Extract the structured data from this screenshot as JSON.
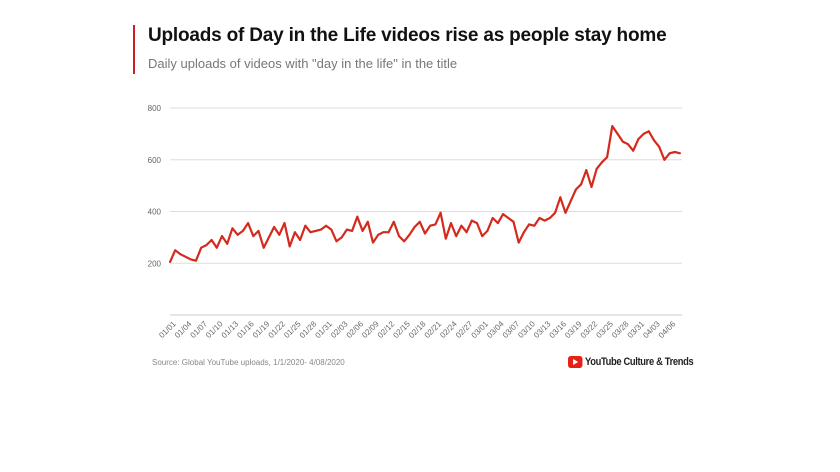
{
  "chart_data": {
    "type": "line",
    "title": "Uploads of Day in the Life videos rise as people stay home",
    "subtitle": "Daily uploads of videos with \"day in the life\" in the title",
    "xlabel": "",
    "ylabel": "",
    "ylim": [
      0,
      800
    ],
    "yticks": [
      "200",
      "400",
      "600",
      "800"
    ],
    "grid": true,
    "line_color": "#d42a1e",
    "x_start": "01/01",
    "x_end": "04/08",
    "xtick_labels": [
      "01/01",
      "01/04",
      "01/07",
      "01/10",
      "01/13",
      "01/16",
      "01/19",
      "01/22",
      "01/25",
      "01/28",
      "01/31",
      "02/03",
      "02/06",
      "02/09",
      "02/12",
      "02/15",
      "02/18",
      "02/21",
      "02/24",
      "02/27",
      "03/01",
      "03/04",
      "03/07",
      "03/10",
      "03/13",
      "03/16",
      "03/19",
      "03/22",
      "03/25",
      "03/28",
      "03/31",
      "04/03",
      "04/06"
    ],
    "series": [
      {
        "name": "Daily uploads",
        "values": [
          205,
          250,
          235,
          225,
          215,
          210,
          260,
          270,
          290,
          260,
          305,
          275,
          335,
          310,
          325,
          355,
          305,
          325,
          260,
          300,
          340,
          310,
          355,
          265,
          320,
          290,
          345,
          320,
          325,
          330,
          345,
          330,
          285,
          300,
          330,
          325,
          380,
          325,
          360,
          280,
          310,
          320,
          320,
          360,
          305,
          285,
          310,
          340,
          360,
          315,
          345,
          350,
          395,
          295,
          355,
          305,
          345,
          320,
          365,
          355,
          305,
          325,
          375,
          355,
          390,
          375,
          360,
          280,
          320,
          350,
          345,
          375,
          365,
          375,
          395,
          455,
          395,
          440,
          485,
          505,
          560,
          495,
          565,
          590,
          610,
          730,
          700,
          670,
          660,
          635,
          680,
          700,
          710,
          675,
          650,
          600,
          625,
          630,
          625
        ]
      }
    ]
  },
  "footer": {
    "source": "Source: Global YouTube uploads, 1/1/2020- 4/08/2020",
    "brand": "YouTube Culture & Trends"
  }
}
